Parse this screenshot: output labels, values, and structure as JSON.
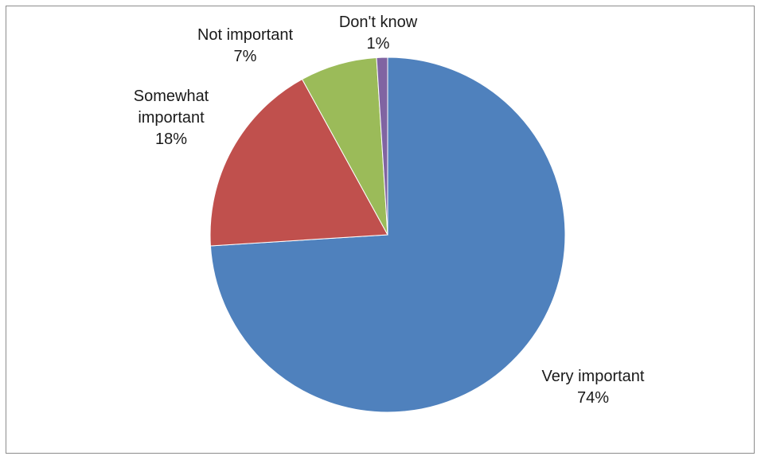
{
  "chart_data": {
    "type": "pie",
    "title": "",
    "categories": [
      "Very important",
      "Somewhat important",
      "Not important",
      "Don't know"
    ],
    "values": [
      74,
      18,
      7,
      1
    ],
    "labels": [
      "74%",
      "18%",
      "7%",
      "1%"
    ],
    "colors": [
      "#4F81BD",
      "#C0504D",
      "#9BBB59",
      "#8064A2"
    ],
    "start_angle_deg": 0,
    "direction": "clockwise",
    "legend": "none",
    "label_lines": [
      [
        "Very important",
        "74%"
      ],
      [
        "Somewhat",
        "important",
        "18%"
      ],
      [
        "Not important",
        "7%"
      ],
      [
        "Don't know",
        "1%"
      ]
    ]
  }
}
